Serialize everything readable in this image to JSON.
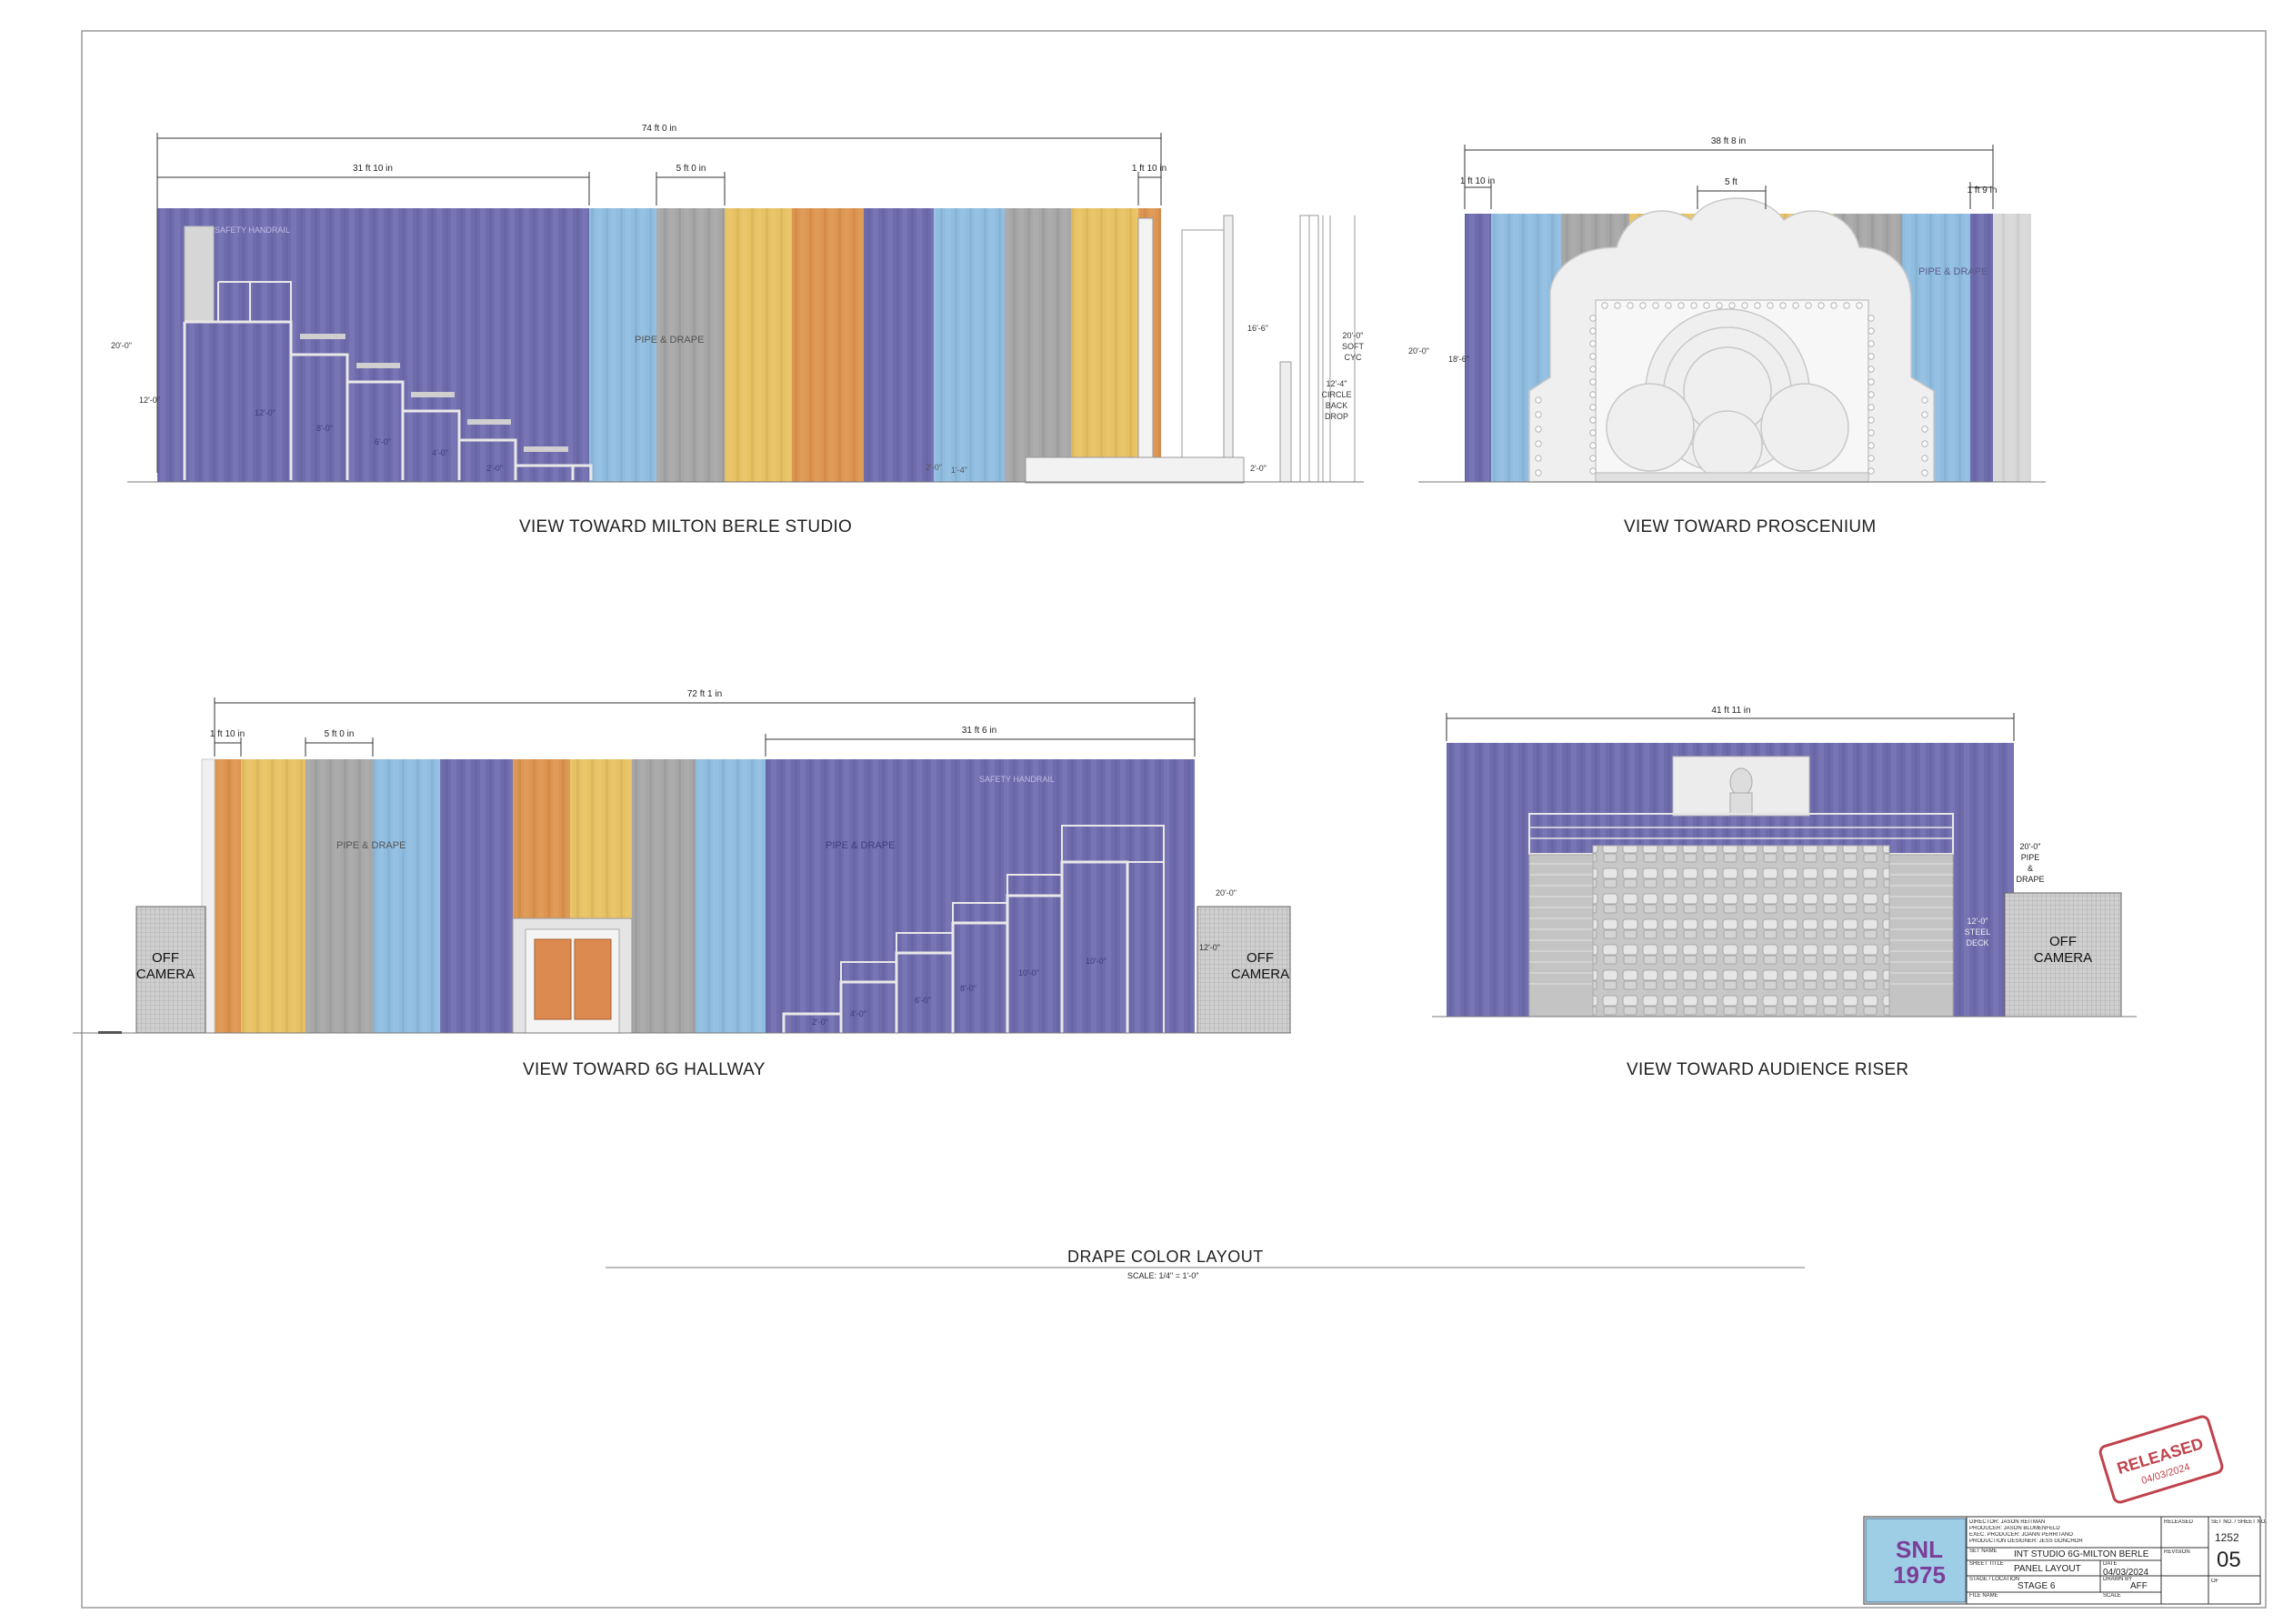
{
  "views": {
    "v1": {
      "title": "VIEW TOWARD MILTON BERLE STUDIO",
      "dims": [
        "74 ft 0 in",
        "31 ft 10 in",
        "5 ft 0 in",
        "1 ft 10 in"
      ],
      "labels": {
        "handrail": "SAFETY HANDRAIL",
        "pipe": "PIPE & DRAPE",
        "h20": "20'-0\"",
        "h12": "12'-0\"",
        "h16": "16'-6\"",
        "soft_cyc": [
          "20'-0\"",
          "SOFT",
          "CYC"
        ],
        "circle_drop": [
          "12'-4\"",
          "CIRCLE",
          "BACK",
          "DROP"
        ],
        "h2": "2'-0\"",
        "h2b": "2'-0\"",
        "w14": "1'-4\"",
        "risers": [
          "12'-0\"",
          "8'-0\"",
          "6'-0\"",
          "4'-0\"",
          "2'-0\""
        ]
      }
    },
    "v2": {
      "title": "VIEW TOWARD PROSCENIUM",
      "dims": [
        "38 ft 8 in",
        "1 ft 10 in",
        "5 ft",
        "1 ft 9 in"
      ],
      "labels": {
        "pipe": "PIPE & DRAPE",
        "h20": "20'-0\"",
        "h18": "18'-6\""
      }
    },
    "v3": {
      "title": "VIEW TOWARD 6G HALLWAY",
      "dims": [
        "72 ft 1 in",
        "1 ft 10 in",
        "5 ft 0 in",
        "31 ft 6 in"
      ],
      "labels": {
        "pipe1": "PIPE & DRAPE",
        "pipe2": "PIPE & DRAPE",
        "handrail": "SAFETY HANDRAIL",
        "h20": "20'-0\"",
        "h12": "12'-0\"",
        "off_left": [
          "OFF",
          "CAMERA"
        ],
        "off_right": [
          "OFF",
          "CAMERA"
        ],
        "risers": [
          "2'-0\"",
          "4'-0\"",
          "6'-0\"",
          "8'-0\"",
          "10'-0\""
        ]
      }
    },
    "v4": {
      "title": "VIEW TOWARD AUDIENCE RISER",
      "dims": [
        "41 ft 11 in"
      ],
      "labels": {
        "pipe_drape": [
          "20'-0\"",
          "PIPE",
          "&",
          "DRAPE"
        ],
        "steel_deck": [
          "12'-0\"",
          "STEEL",
          "DECK"
        ],
        "off": [
          "OFF",
          "CAMERA"
        ]
      }
    }
  },
  "sheet": {
    "title": "DRAPE COLOR LAYOUT",
    "scale": "SCALE: 1/4\" = 1'-0\""
  },
  "stamp": {
    "text": "RELEASED",
    "date": "04/03/2024"
  },
  "title_block": {
    "logo_text": "SNL 1975",
    "credits": [
      "DIRECTOR: JASON REITMAN",
      "PRODUCER: JASON BLUMENFELD",
      "EXEC. PRODUCER: JOANN PERRITANO",
      "PRODUCTION DESIGNER: JESS GONCHOR"
    ],
    "set_name_label": "SET NAME",
    "set_name": "INT STUDIO 6G-MILTON BERLE",
    "sheet_title_label": "SHEET TITLE",
    "sheet_title": "PANEL LAYOUT",
    "date_label": "DATE",
    "date": "04/03/2024",
    "stage_label": "STAGE / LOCATION",
    "stage": "STAGE 6",
    "drawn_label": "DRAWN BY",
    "drawn_by": "AFF",
    "file_label": "FILE NAME",
    "scale_label": "SCALE",
    "released_label": "RELEASED",
    "revision_label": "REVISION",
    "set_no_label": "SET NO. / SHEET NO.",
    "set_no": "1252",
    "sheet_no": "05",
    "of_label": "OF"
  },
  "colors": {
    "purple": "#6f6cae",
    "blue": "#8fbde0",
    "gray": "#a7a7a7",
    "yellow": "#e8c162",
    "orange": "#dd9550",
    "riser_gray": "#bcbcbc",
    "arch_white": "#efefef",
    "stamp_red": "#c0424b"
  }
}
